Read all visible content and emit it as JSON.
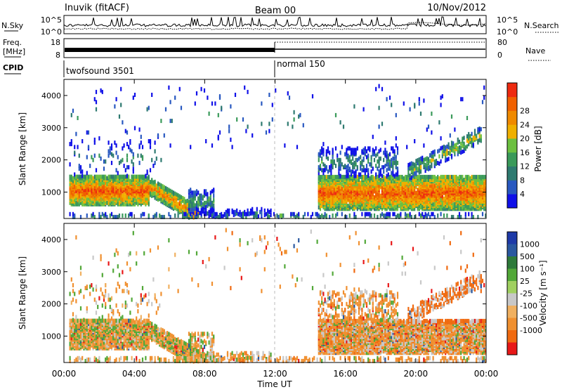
{
  "header": {
    "station": "Inuvik (fitACF)",
    "beam": "Beam 00",
    "date": "10/Nov/2012"
  },
  "labels": {
    "nsky": "N.Sky",
    "nsearch": "N.Search",
    "freq_line1": "Freq.",
    "freq_line2": "[MHz]",
    "nave": "Nave",
    "cpid": "CPID",
    "cpid1": "twofsound 3501",
    "cpid2": "normal 150"
  },
  "colors": {
    "power": [
      "#1010e8",
      "#2858c0",
      "#2e7a70",
      "#3a9a5a",
      "#6cc040",
      "#f0b000",
      "#f08a00",
      "#f06000",
      "#ee2a10"
    ],
    "velocity": [
      "#1e3aa8",
      "#2a58a0",
      "#2e7a3a",
      "#52a838",
      "#a0d060",
      "#c8c8c8",
      "#f0b060",
      "#f09030",
      "#f06a10",
      "#e81818"
    ]
  },
  "chart_data": [
    {
      "type": "line",
      "name": "sky-noise",
      "ylabel": "N.Sky",
      "yticks_left": [
        "10^5",
        "10^0"
      ],
      "yticks_right": [
        "10^5",
        "10^0"
      ],
      "legend": "N.Search",
      "x_range": [
        0,
        24
      ]
    },
    {
      "type": "line",
      "name": "frequency-nave",
      "ylabel": "Freq. [MHz]",
      "yticks_left": [
        "18",
        "8"
      ],
      "yticks_right": [
        "80",
        "0"
      ],
      "legend": "Nave",
      "x_range": [
        0,
        24
      ],
      "freq_segments": [
        {
          "x": [
            0,
            12
          ],
          "level": "8-10 MHz (dense switching)"
        },
        {
          "x": [
            12,
            24
          ],
          "level": "~10 MHz"
        }
      ]
    },
    {
      "type": "heatmap",
      "name": "power",
      "xlabel": "",
      "ylabel": "Slant Range [km]",
      "x_range": [
        0,
        24
      ],
      "y_range": [
        180,
        4500
      ],
      "yticks": [
        1000,
        2000,
        3000,
        4000
      ],
      "colorbar_label": "Power [dB]",
      "colorbar_ticks": [
        28,
        24,
        20,
        16,
        12,
        8,
        4
      ],
      "regions": [
        {
          "x": [
            0.5,
            4.8
          ],
          "y": [
            600,
            1500
          ],
          "intensity": "high"
        },
        {
          "x": [
            4.8,
            7.5
          ],
          "y": [
            300,
            1200
          ],
          "intensity": "high"
        },
        {
          "x": [
            7.5,
            11.5
          ],
          "y": [
            200,
            500
          ],
          "intensity": "low"
        },
        {
          "x": [
            14.5,
            24
          ],
          "y": [
            500,
            1600
          ],
          "intensity": "high"
        },
        {
          "x": [
            19.5,
            23.5
          ],
          "y": [
            1500,
            2800
          ],
          "intensity": "medium"
        }
      ]
    },
    {
      "type": "heatmap",
      "name": "velocity",
      "xlabel": "Time UT",
      "ylabel": "Slant Range [km]",
      "x_range": [
        0,
        24
      ],
      "y_range": [
        180,
        4500
      ],
      "yticks": [
        1000,
        2000,
        3000,
        4000
      ],
      "xticks": [
        "00:00",
        "04:00",
        "08:00",
        "12:00",
        "16:00",
        "20:00",
        "00:00"
      ],
      "colorbar_label": "Velocity [m s⁻¹]",
      "colorbar_ticks": [
        1000,
        500,
        100,
        25,
        -25,
        -100,
        -500,
        -1000
      ]
    }
  ]
}
